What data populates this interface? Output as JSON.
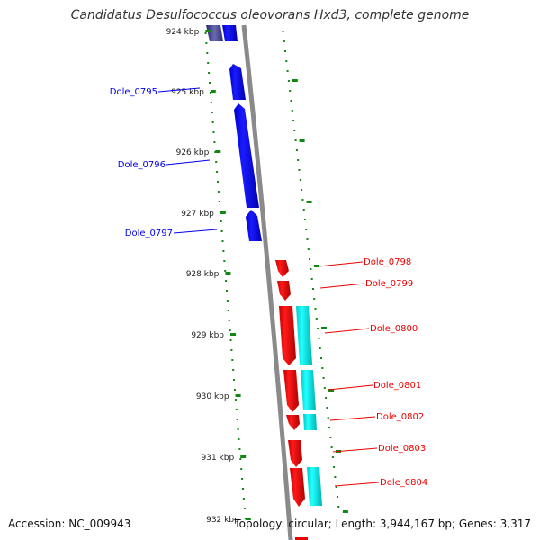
{
  "title": "Candidatus Desulfococcus oleovorans Hxd3, complete genome",
  "accession_label": "Accession: NC_009943",
  "summary_label": "Topology: circular; Length: 3,944,167 bp; Genes: 3,317",
  "scale": {
    "ticks": [
      "924 kbp",
      "925 kbp",
      "926 kbp",
      "927 kbp",
      "928 kbp",
      "929 kbp",
      "930 kbp",
      "931 kbp",
      "932 kbp"
    ]
  },
  "genes": [
    {
      "label": "Dole_0795",
      "strand": "left"
    },
    {
      "label": "Dole_0796",
      "strand": "left"
    },
    {
      "label": "Dole_0797",
      "strand": "left"
    },
    {
      "label": "Dole_0798",
      "strand": "right"
    },
    {
      "label": "Dole_0799",
      "strand": "right"
    },
    {
      "label": "Dole_0800",
      "strand": "right"
    },
    {
      "label": "Dole_0801",
      "strand": "right"
    },
    {
      "label": "Dole_0802",
      "strand": "right"
    },
    {
      "label": "Dole_0803",
      "strand": "right"
    },
    {
      "label": "Dole_0804",
      "strand": "right"
    }
  ],
  "colors": {
    "left_strand": "#0000ee",
    "right_strand": "#ee0000",
    "rna_feature": "#00e5e5",
    "backbone": "#888888",
    "scale_dots": "#118811"
  }
}
